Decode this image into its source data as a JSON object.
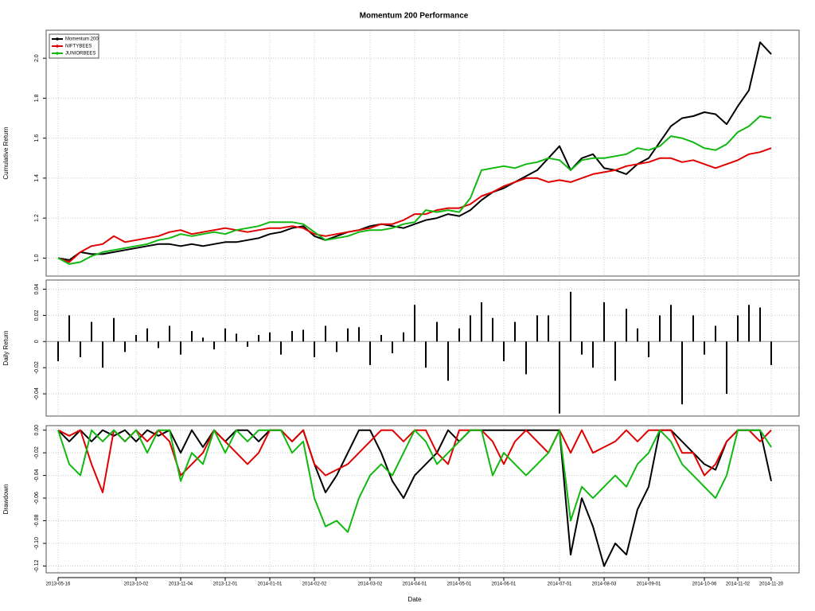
{
  "chart_data": [
    {
      "type": "line",
      "title": "Momentum 200 Performance",
      "ylabel": "Cumulative Return",
      "ylim": [
        0.91,
        2.14
      ],
      "yticks": [
        {
          "value": 1.0,
          "label": "1.0"
        },
        1.2,
        1.4,
        1.6,
        1.8,
        {
          "value": 2.0,
          "label": "2.0"
        }
      ],
      "grid": true,
      "legend": "topleft",
      "series": [
        {
          "name": "Momentum 200",
          "color": "#000000",
          "values": [
            1.0,
            0.99,
            1.03,
            1.02,
            1.02,
            1.03,
            1.04,
            1.05,
            1.06,
            1.07,
            1.07,
            1.06,
            1.07,
            1.06,
            1.07,
            1.08,
            1.08,
            1.09,
            1.1,
            1.12,
            1.13,
            1.15,
            1.16,
            1.11,
            1.09,
            1.11,
            1.13,
            1.14,
            1.16,
            1.17,
            1.16,
            1.15,
            1.17,
            1.19,
            1.2,
            1.22,
            1.21,
            1.24,
            1.29,
            1.33,
            1.35,
            1.38,
            1.41,
            1.44,
            1.5,
            1.56,
            1.44,
            1.5,
            1.52,
            1.45,
            1.44,
            1.42,
            1.47,
            1.5,
            1.58,
            1.66,
            1.7,
            1.71,
            1.73,
            1.72,
            1.67,
            1.76,
            1.84,
            2.08,
            2.02
          ]
        },
        {
          "name": "NIFTYBEES",
          "color": "#e00000",
          "values": [
            1.0,
            0.98,
            1.03,
            1.06,
            1.07,
            1.11,
            1.08,
            1.09,
            1.1,
            1.11,
            1.13,
            1.14,
            1.12,
            1.13,
            1.14,
            1.15,
            1.14,
            1.13,
            1.14,
            1.15,
            1.15,
            1.16,
            1.15,
            1.12,
            1.11,
            1.12,
            1.13,
            1.14,
            1.15,
            1.17,
            1.17,
            1.19,
            1.22,
            1.22,
            1.24,
            1.25,
            1.25,
            1.27,
            1.31,
            1.33,
            1.36,
            1.38,
            1.4,
            1.4,
            1.38,
            1.39,
            1.38,
            1.4,
            1.42,
            1.43,
            1.44,
            1.46,
            1.47,
            1.48,
            1.5,
            1.5,
            1.48,
            1.49,
            1.47,
            1.45,
            1.47,
            1.49,
            1.52,
            1.53,
            1.55
          ]
        },
        {
          "name": "JUNIORBEES",
          "color": "#10b810",
          "values": [
            1.0,
            0.97,
            0.98,
            1.01,
            1.03,
            1.04,
            1.05,
            1.06,
            1.07,
            1.09,
            1.1,
            1.12,
            1.11,
            1.12,
            1.13,
            1.12,
            1.14,
            1.15,
            1.16,
            1.18,
            1.18,
            1.18,
            1.17,
            1.13,
            1.09,
            1.1,
            1.11,
            1.13,
            1.14,
            1.14,
            1.15,
            1.17,
            1.18,
            1.24,
            1.23,
            1.24,
            1.23,
            1.3,
            1.44,
            1.45,
            1.46,
            1.45,
            1.47,
            1.48,
            1.5,
            1.49,
            1.44,
            1.49,
            1.5,
            1.5,
            1.51,
            1.52,
            1.55,
            1.54,
            1.56,
            1.61,
            1.6,
            1.58,
            1.55,
            1.54,
            1.57,
            1.63,
            1.66,
            1.71,
            1.7
          ]
        }
      ]
    },
    {
      "type": "bar",
      "ylabel": "Daily Return",
      "ylim": [
        -0.057,
        0.047
      ],
      "yticks": [
        0.04,
        0.02,
        0,
        -0.02,
        -0.04
      ],
      "grid": true,
      "color": "#000000",
      "values": [
        -0.015,
        0.02,
        -0.012,
        0.015,
        -0.02,
        0.018,
        -0.008,
        0.005,
        0.01,
        -0.005,
        0.012,
        -0.01,
        0.008,
        0.003,
        -0.006,
        0.01,
        0.006,
        -0.004,
        0.005,
        0.007,
        -0.01,
        0.008,
        0.009,
        -0.012,
        0.012,
        -0.008,
        0.01,
        0.011,
        -0.018,
        0.005,
        -0.009,
        0.007,
        0.028,
        -0.02,
        0.015,
        -0.03,
        0.01,
        0.02,
        0.03,
        0.018,
        -0.015,
        0.015,
        -0.025,
        0.02,
        0.02,
        -0.055,
        0.038,
        -0.01,
        -0.02,
        0.03,
        -0.03,
        0.025,
        0.01,
        -0.012,
        0.02,
        0.028,
        -0.048,
        0.02,
        -0.01,
        0.012,
        -0.04,
        0.02,
        0.028,
        0.026,
        -0.018
      ]
    },
    {
      "type": "line",
      "ylabel": "Drawdown",
      "xlabel": "Date",
      "ylim": [
        -0.126,
        0.004
      ],
      "yticks": [
        {
          "value": 0,
          "label": "0.00"
        },
        -0.02,
        -0.04,
        -0.06,
        -0.08,
        {
          "value": -0.1,
          "label": "-0.10"
        },
        -0.12
      ],
      "grid": true,
      "categories": [
        "2013-05-16",
        null,
        null,
        null,
        null,
        null,
        null,
        "2013-10-02",
        null,
        null,
        null,
        "2013-11-04",
        null,
        null,
        null,
        "2013-12-01",
        null,
        null,
        null,
        "2014-01-01",
        null,
        null,
        null,
        "2014-02-02",
        null,
        null,
        null,
        null,
        "2014-03-02",
        null,
        null,
        null,
        "2014-04-01",
        null,
        null,
        null,
        "2014-05-01",
        null,
        null,
        null,
        "2014-06-01",
        null,
        null,
        null,
        null,
        "2014-07-01",
        null,
        null,
        null,
        "2014-08-03",
        null,
        null,
        null,
        "2014-09-01",
        null,
        null,
        null,
        null,
        "2014-10-06",
        null,
        null,
        "2014-11-02",
        null,
        null,
        "2014-11-20"
      ],
      "series": [
        {
          "name": "Momentum 200",
          "color": "#000000",
          "values": [
            0,
            -0.01,
            0,
            -0.01,
            0,
            -0.005,
            0,
            -0.01,
            0,
            -0.005,
            0,
            -0.02,
            0,
            -0.015,
            0,
            -0.01,
            0,
            0,
            -0.01,
            0,
            0,
            -0.01,
            0,
            -0.03,
            -0.055,
            -0.04,
            -0.02,
            0,
            0,
            -0.02,
            -0.045,
            -0.06,
            -0.04,
            -0.03,
            -0.02,
            0,
            -0.01,
            0,
            0,
            0,
            0,
            0,
            0,
            0,
            0,
            0,
            -0.11,
            -0.06,
            -0.085,
            -0.12,
            -0.1,
            -0.11,
            -0.07,
            -0.05,
            0,
            0,
            -0.01,
            -0.02,
            -0.03,
            -0.035,
            -0.01,
            0,
            0,
            0,
            -0.045
          ]
        },
        {
          "name": "NIFTYBEES",
          "color": "#e00000",
          "values": [
            0,
            -0.005,
            0,
            -0.03,
            -0.055,
            0,
            -0.01,
            0,
            -0.01,
            0,
            -0.01,
            -0.04,
            -0.03,
            -0.02,
            0,
            -0.01,
            -0.02,
            -0.03,
            -0.02,
            0,
            0,
            -0.01,
            0,
            -0.03,
            -0.04,
            -0.035,
            -0.03,
            -0.02,
            -0.01,
            0,
            0,
            -0.01,
            0,
            0,
            -0.02,
            -0.03,
            0,
            0,
            0,
            -0.01,
            -0.03,
            -0.01,
            0,
            -0.01,
            -0.02,
            0,
            -0.02,
            0,
            -0.02,
            -0.015,
            -0.01,
            0,
            -0.01,
            0,
            0,
            0,
            -0.02,
            -0.02,
            -0.04,
            -0.03,
            -0.01,
            0,
            0,
            -0.01,
            0
          ]
        },
        {
          "name": "JUNIORBEES",
          "color": "#10b810",
          "values": [
            0,
            -0.03,
            -0.04,
            0,
            -0.01,
            0,
            -0.01,
            0,
            -0.02,
            0,
            0,
            -0.045,
            -0.02,
            -0.03,
            0,
            -0.02,
            0,
            -0.01,
            0,
            0,
            0,
            -0.02,
            -0.01,
            -0.06,
            -0.085,
            -0.08,
            -0.09,
            -0.06,
            -0.04,
            -0.03,
            -0.04,
            -0.02,
            0,
            -0.01,
            -0.03,
            -0.02,
            -0.01,
            0,
            0,
            -0.04,
            -0.02,
            -0.03,
            -0.04,
            -0.03,
            -0.02,
            0,
            -0.08,
            -0.05,
            -0.06,
            -0.05,
            -0.04,
            -0.05,
            -0.03,
            -0.02,
            0,
            -0.01,
            -0.03,
            -0.04,
            -0.05,
            -0.06,
            -0.04,
            0,
            0,
            0,
            -0.015
          ]
        }
      ]
    }
  ]
}
